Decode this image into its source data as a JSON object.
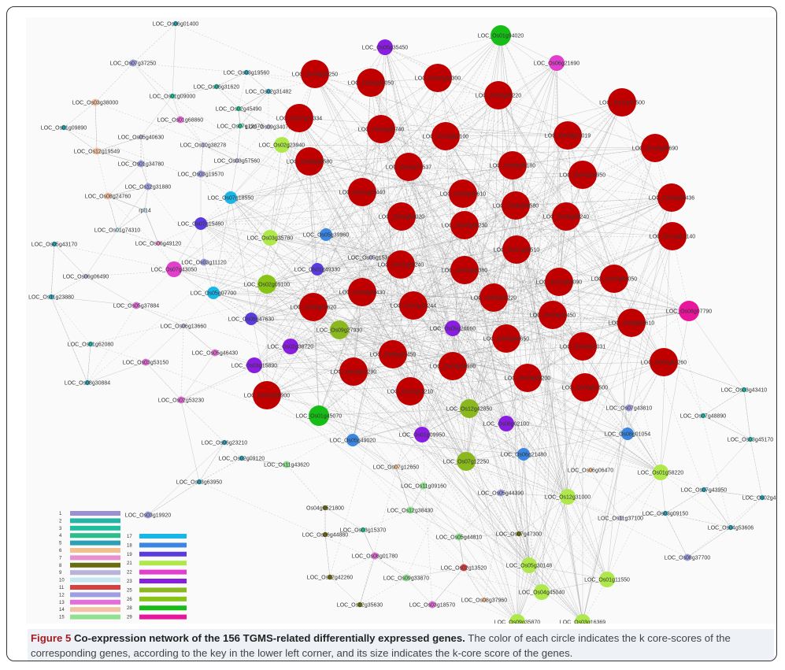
{
  "figure": {
    "label": "Figure 5",
    "title": "Co-expression network of the 156 TGMS-related differentially expressed genes.",
    "text": "The color of each circle indicates the k core-scores of the corresponding genes, according to the key in the lower left corner, and its size indicates the k-core score of the genes."
  },
  "colors": {
    "1": "#9b8fd6",
    "2": "#27b3a6",
    "3": "#1fbf9d",
    "4": "#2abf8a",
    "5": "#2a9fb5",
    "6": "#f0c090",
    "7": "#e88fd0",
    "8": "#6b6b10",
    "9": "#b8b4d8",
    "10": "#c6e6f0",
    "11": "#d94040",
    "12": "#9e9ee0",
    "13": "#e26fd6",
    "14": "#f4c2a3",
    "15": "#8fe08f",
    "17": "#19b6e8",
    "18": "#3a86e0",
    "19": "#5b3be0",
    "21": "#aee84a",
    "22": "#e040cc",
    "23": "#8a1ee0",
    "25": "#8ab81e",
    "26": "#88c415",
    "28": "#17bd17",
    "29": "#e8169c",
    "30": "#c00000"
  },
  "legend": {
    "left": [
      "1",
      "2",
      "3",
      "4",
      "5",
      "6",
      "7",
      "8",
      "9",
      "10",
      "11",
      "12",
      "13",
      "14",
      "15"
    ],
    "right": [
      "17",
      "18",
      "19",
      "21",
      "22",
      "23",
      "25",
      "26",
      "28",
      "29",
      "30"
    ]
  },
  "nodes": [
    {
      "id": "LOC_Os06g01400",
      "k": "5"
    },
    {
      "id": "LOC_Os07g37250",
      "k": "12"
    },
    {
      "id": "LOC_Os03g19560",
      "k": "5"
    },
    {
      "id": "LOC_Os06g31620",
      "k": "2"
    },
    {
      "id": "LOC_Os02g31482",
      "k": "5"
    },
    {
      "id": "LOC_Os01g09000",
      "k": "3"
    },
    {
      "id": "LOC_Os03g38000",
      "k": "14"
    },
    {
      "id": "LOC_Os02g45490",
      "k": "4"
    },
    {
      "id": "LOC_Os01g68860",
      "k": "13"
    },
    {
      "id": "LOC_Os01g09890",
      "k": "5"
    },
    {
      "id": "LOC_Os07g12470",
      "k": "4"
    },
    {
      "id": "LOC_Os09g34070",
      "k": "9"
    },
    {
      "id": "LOC_Os05g40630",
      "k": "9"
    },
    {
      "id": "LOC_Os10g38278",
      "k": "9"
    },
    {
      "id": "LOC_Os02g23940",
      "k": "21"
    },
    {
      "id": "LOC_Os12g19549",
      "k": "14"
    },
    {
      "id": "LOC_Os01g34780",
      "k": "12"
    },
    {
      "id": "LOC_Os03g57560",
      "k": "9"
    },
    {
      "id": "LOC_Os03g19570",
      "k": "12"
    },
    {
      "id": "LOC_Os12g31880",
      "k": "12"
    },
    {
      "id": "LOC_Os07g18550",
      "k": "17"
    },
    {
      "id": "LOC_Os08g24760",
      "k": "14"
    },
    {
      "id": "rpl14",
      "k": "10"
    },
    {
      "id": "LOC_Os07g15460",
      "k": "19"
    },
    {
      "id": "LOC_Os01g74310",
      "k": "10"
    },
    {
      "id": "LOC_Os03g35780",
      "k": "21"
    },
    {
      "id": "LOC_Os05g39960",
      "k": "18"
    },
    {
      "id": "LOC_Os05g43170",
      "k": "5"
    },
    {
      "id": "LOC_Os06g49120",
      "k": "7"
    },
    {
      "id": "LOC_Os05g15360",
      "k": "9"
    },
    {
      "id": "LOC_Os03g11120",
      "k": "12"
    },
    {
      "id": "LOC_Os07g43050",
      "k": "22"
    },
    {
      "id": "LOC_Os01g49330",
      "k": "19"
    },
    {
      "id": "LOC_Os06g06490",
      "k": "9"
    },
    {
      "id": "LOC_Os02g09100",
      "k": "26"
    },
    {
      "id": "LOC_Os05g07700",
      "k": "17"
    },
    {
      "id": "LOC_Os11g23880",
      "k": "5"
    },
    {
      "id": "LOC_Os05g37884",
      "k": "13"
    },
    {
      "id": "LOC_Os08g47630",
      "k": "19"
    },
    {
      "id": "LOC_Os06g13660",
      "k": "9"
    },
    {
      "id": "LOC_Os01g62080",
      "k": "2"
    },
    {
      "id": "LOC_Os05g46430",
      "k": "13"
    },
    {
      "id": "LOC_Os03g53150",
      "k": "13"
    },
    {
      "id": "LOC_Os03g15890",
      "k": "23"
    },
    {
      "id": "LOC_Os08g30884",
      "k": "5"
    },
    {
      "id": "LOC_Os02g53230",
      "k": "13"
    },
    {
      "id": "LOC_Os05g35450",
      "k": "23"
    },
    {
      "id": "LOC_Os01g94020",
      "k": "28"
    },
    {
      "id": "LOC_Os06g21690",
      "k": "22"
    },
    {
      "id": "LOC_Os02g38720",
      "k": "23"
    },
    {
      "id": "LOC_Os09g27930",
      "k": "25"
    },
    {
      "id": "LOC_Os05g26660",
      "k": "23"
    },
    {
      "id": "LOC_Os08g07790",
      "k": "29"
    },
    {
      "id": "LOC_Os01g45070",
      "k": "28"
    },
    {
      "id": "LOC_Os12g42850",
      "k": "25"
    },
    {
      "id": "LOC_Os08g02100",
      "k": "23"
    },
    {
      "id": "LOC_Os01g09950",
      "k": "23"
    },
    {
      "id": "LOC_Os07g12250",
      "k": "25"
    },
    {
      "id": "LOC_Os05g49020",
      "k": "18"
    },
    {
      "id": "LOC_Os06g21480",
      "k": "18"
    },
    {
      "id": "LOC_Os07g43810",
      "k": "12"
    },
    {
      "id": "LOC_Os07g48890",
      "k": "2"
    },
    {
      "id": "LOC_Os03g43410",
      "k": "2"
    },
    {
      "id": "LOC_Os03g45170",
      "k": "2"
    },
    {
      "id": "LOC_Os08g01054",
      "k": "18"
    },
    {
      "id": "LOC_Os06g23210",
      "k": "5"
    },
    {
      "id": "LOC_Os02g09120",
      "k": "5"
    },
    {
      "id": "LOC_Os03g63950",
      "k": "5"
    },
    {
      "id": "LOC_Os03g19920",
      "k": "12"
    },
    {
      "id": "LOC_Os11g43620",
      "k": "15"
    },
    {
      "id": "LOC_Os07g12650",
      "k": "6"
    },
    {
      "id": "LOC_Os06g06470",
      "k": "6"
    },
    {
      "id": "LOC_Os01g58220",
      "k": "21"
    },
    {
      "id": "Os04g0521800",
      "k": "8"
    },
    {
      "id": "LOC_Os11g09160",
      "k": "15"
    },
    {
      "id": "LOC_Os05g44390",
      "k": "12"
    },
    {
      "id": "LOC_Os12g31000",
      "k": "21"
    },
    {
      "id": "LOC_Os12g38430",
      "k": "15"
    },
    {
      "id": "LOC_Os07g43950",
      "k": "5"
    },
    {
      "id": "LOC_Os02g494",
      "k": "5"
    },
    {
      "id": "LOC_Os03g09150",
      "k": "5"
    },
    {
      "id": "LOC_Os11g37100",
      "k": "9"
    },
    {
      "id": "LOC_Os06g44880",
      "k": "8"
    },
    {
      "id": "LOC_Os03g15370",
      "k": "4"
    },
    {
      "id": "LOC_Os05g44810",
      "k": "15"
    },
    {
      "id": "LOC_Os07g47300",
      "k": "8"
    },
    {
      "id": "LOC_Os04g53606",
      "k": "5"
    },
    {
      "id": "LOC_Os08g01780",
      "k": "13"
    },
    {
      "id": "LOC_Os08g37700",
      "k": "12"
    },
    {
      "id": "LOC_Os12g42260",
      "k": "8"
    },
    {
      "id": "LOC_Os09g33870",
      "k": "15"
    },
    {
      "id": "LOC_Os02g13520",
      "k": "11"
    },
    {
      "id": "LOC_Os05g30148",
      "k": "21"
    },
    {
      "id": "LOC_Os01g11550",
      "k": "21"
    },
    {
      "id": "LOC_Os04g45040",
      "k": "21"
    },
    {
      "id": "LOC_Os12g35630",
      "k": "8"
    },
    {
      "id": "LOC_Os03g18570",
      "k": "13"
    },
    {
      "id": "LOC_Os08g37960",
      "k": "6"
    },
    {
      "id": "LOC_Os09g35870",
      "k": "21"
    },
    {
      "id": "LOC_Os03g16369",
      "k": "21"
    },
    {
      "id": "LOC_Os08g38250",
      "k": "30"
    },
    {
      "id": "LOC_Os04g40050",
      "k": "30"
    },
    {
      "id": "LOC_Os02g30300",
      "k": "30"
    },
    {
      "id": "LOC_Os04g08220",
      "k": "30"
    },
    {
      "id": "LOC_Os11g07500",
      "k": "30"
    },
    {
      "id": "LOC_Os07g22334",
      "k": "30"
    },
    {
      "id": "LOC_Os03g38740",
      "k": "30"
    },
    {
      "id": "LOC_Os03g02100",
      "k": "30"
    },
    {
      "id": "LOC_Os09g21019",
      "k": "30"
    },
    {
      "id": "LOC_Os10g35690",
      "k": "30"
    },
    {
      "id": "LOC_Os08g38580",
      "k": "30"
    },
    {
      "id": "LOC_Os01g72537",
      "k": "30"
    },
    {
      "id": "LOC_Os08g39180",
      "k": "30"
    },
    {
      "id": "LOC_Os05g09950",
      "k": "30"
    },
    {
      "id": "LOC_Os01g05440",
      "k": "30"
    },
    {
      "id": "LOC_Os08g40610",
      "k": "30"
    },
    {
      "id": "LOC_Os06g08580",
      "k": "30"
    },
    {
      "id": "LOC_Os10g28436",
      "k": "30"
    },
    {
      "id": "LOC_Os03g53020",
      "k": "30"
    },
    {
      "id": "LOC_Os09g06230",
      "k": "30"
    },
    {
      "id": "LOC_Os05g08240",
      "k": "30"
    },
    {
      "id": "LOC_Os12g13140",
      "k": "30"
    },
    {
      "id": "LOC_Os01g06510",
      "k": "30"
    },
    {
      "id": "LOC_Os12g26240",
      "k": "30"
    },
    {
      "id": "LOC_Os03g06380",
      "k": "30"
    },
    {
      "id": "LOC_Os01g64090",
      "k": "30"
    },
    {
      "id": "LOC_Os05g44050",
      "k": "30"
    },
    {
      "id": "LOC_Os09g09430",
      "k": "30"
    },
    {
      "id": "LOC_Os10g18244",
      "k": "30"
    },
    {
      "id": "LOC_Os04g25220",
      "k": "30"
    },
    {
      "id": "LOC_Os06g19620",
      "k": "30"
    },
    {
      "id": "LOC_Os09g03450",
      "k": "30"
    },
    {
      "id": "LOC_Os08g04610",
      "k": "30"
    },
    {
      "id": "LOC_Os05g49650",
      "k": "30"
    },
    {
      "id": "LOC_Os08g01031",
      "k": "30"
    },
    {
      "id": "LOC_Os06g22450",
      "k": "30"
    },
    {
      "id": "LOC_Os02g07290",
      "k": "30"
    },
    {
      "id": "LOC_Os02g06980",
      "k": "30"
    },
    {
      "id": "LOC_Os03g41260",
      "k": "30"
    },
    {
      "id": "LOC_Os01g59900",
      "k": "30"
    },
    {
      "id": "LOC_Os09g09200",
      "k": "30"
    },
    {
      "id": "LOC_Os03g01500",
      "k": "30"
    },
    {
      "id": "LOC_Os12g21210",
      "k": "30"
    }
  ]
}
